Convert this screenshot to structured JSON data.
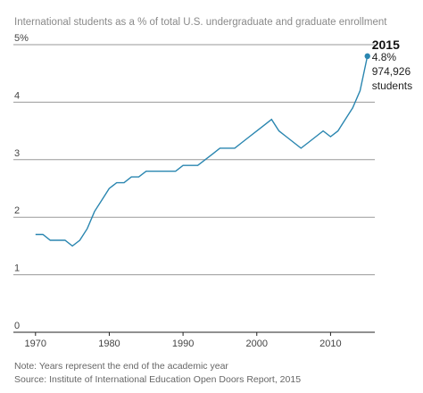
{
  "chart_data": {
    "type": "line",
    "title": "International students as a % of total U.S. undergraduate and graduate enrollment",
    "x_ticks": [
      "1970",
      "1980",
      "1990",
      "2000",
      "2010"
    ],
    "y_ticks": [
      "0",
      "1",
      "2",
      "3",
      "4",
      "5%"
    ],
    "xlim": [
      1967,
      2016
    ],
    "ylim": [
      0,
      5
    ],
    "grid": "horizontal",
    "series": [
      {
        "x": [
          1970,
          1971,
          1972,
          1973,
          1974,
          1975,
          1976,
          1977,
          1978,
          1979,
          1980,
          1981,
          1982,
          1983,
          1984,
          1985,
          1986,
          1987,
          1988,
          1989,
          1990,
          1991,
          1992,
          1993,
          1994,
          1995,
          1996,
          1997,
          1998,
          1999,
          2000,
          2001,
          2002,
          2003,
          2004,
          2005,
          2006,
          2007,
          2008,
          2009,
          2010,
          2011,
          2012,
          2013,
          2014,
          2015
        ],
        "values": [
          1.7,
          1.7,
          1.6,
          1.6,
          1.6,
          1.5,
          1.6,
          1.8,
          2.1,
          2.3,
          2.5,
          2.6,
          2.6,
          2.7,
          2.7,
          2.8,
          2.8,
          2.8,
          2.8,
          2.8,
          2.9,
          2.9,
          2.9,
          3.0,
          3.1,
          3.2,
          3.2,
          3.2,
          3.3,
          3.4,
          3.5,
          3.6,
          3.7,
          3.5,
          3.4,
          3.3,
          3.2,
          3.3,
          3.4,
          3.5,
          3.4,
          3.5,
          3.7,
          3.9,
          4.2,
          4.8
        ],
        "color": "#2a86b0"
      }
    ],
    "annotation": {
      "x": 2015,
      "y": 4.8,
      "year": "2015",
      "lines": [
        "4.8%",
        "974,926",
        "students"
      ]
    }
  },
  "notes": [
    "Note: Years represent the end of the academic year",
    "Source: Institute of International Education Open Doors Report, 2015"
  ]
}
